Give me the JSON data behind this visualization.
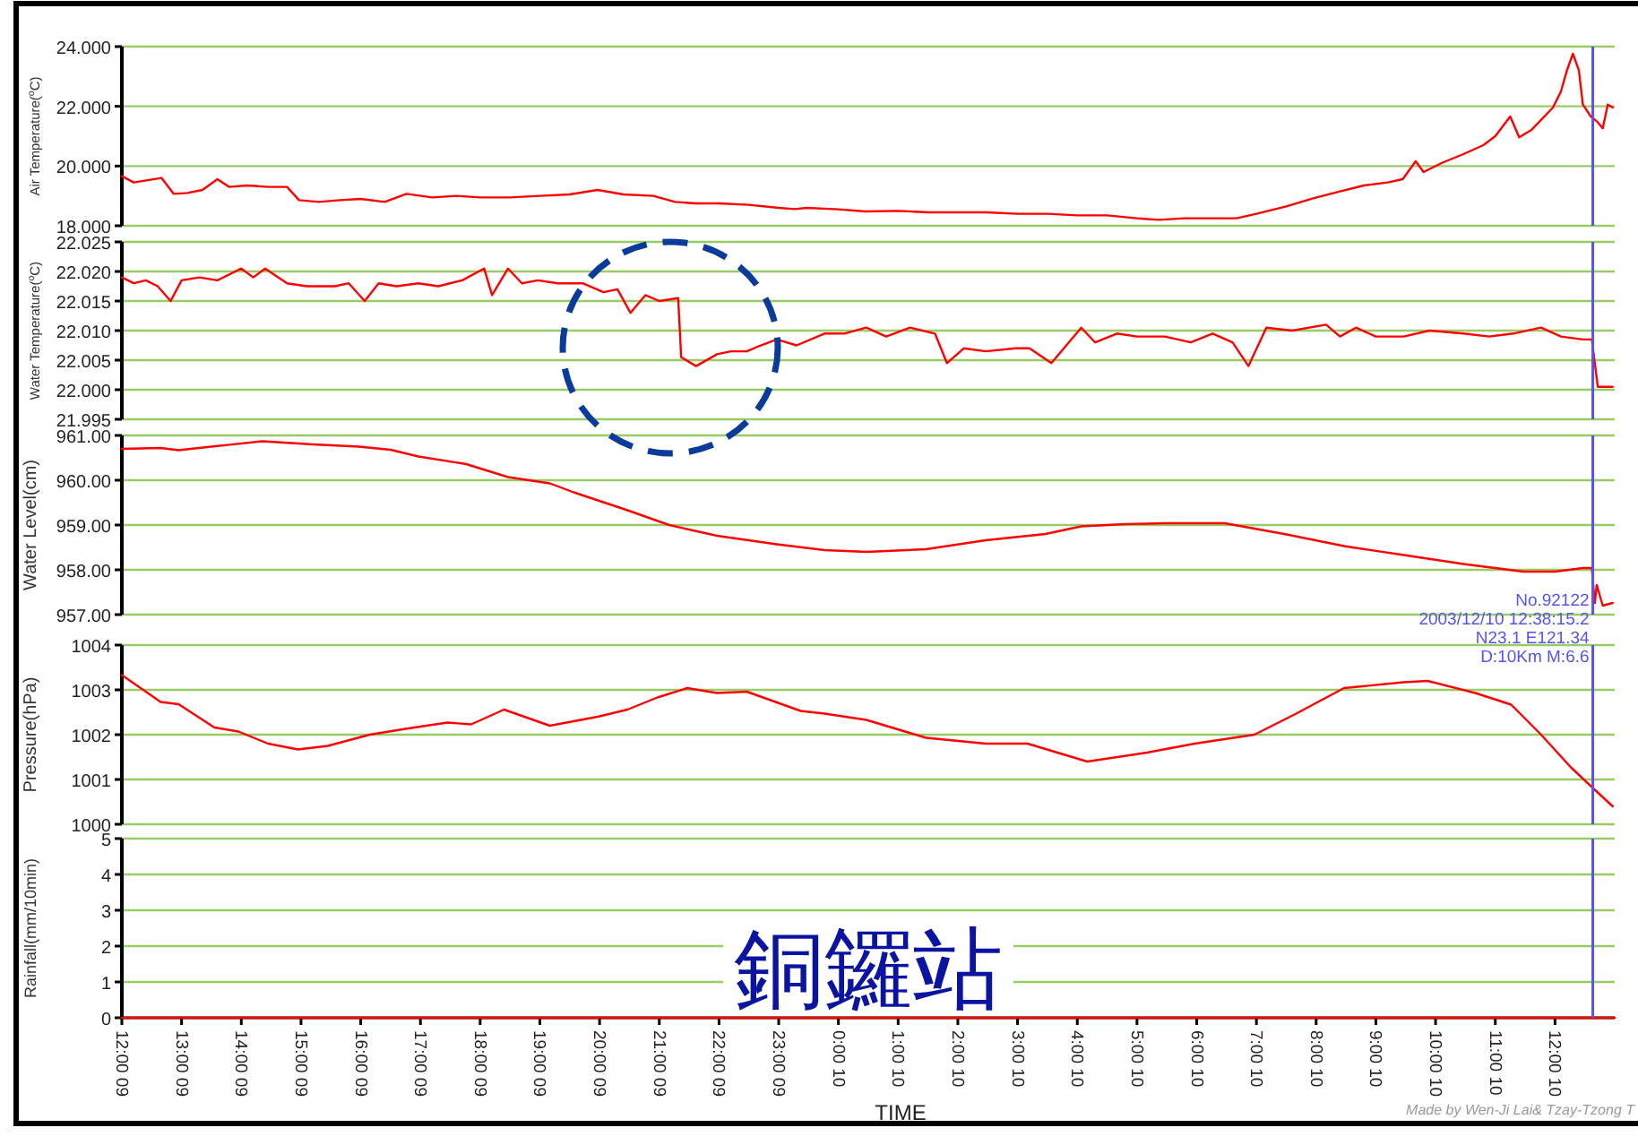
{
  "chart_data": [
    {
      "type": "line",
      "ylabel": "Air Temperature($^{o}$C)",
      "color": "#ff0000",
      "xlim": [
        "2003-12-09T12:00",
        "2003-12-10T13:00"
      ],
      "ylim": [
        18,
        24
      ],
      "yticks": [
        {
          "value": 18,
          "label": "18.000"
        },
        {
          "value": 20,
          "label": "20.000"
        },
        {
          "value": 22,
          "label": "22.000"
        },
        {
          "value": 24,
          "label": "24.000"
        }
      ],
      "grid": "y",
      "tick_labels": "y",
      "x": [
        "2003-12-09T12:00",
        "2003-12-09T12:12",
        "2003-12-09T12:30",
        "2003-12-09T12:40",
        "2003-12-09T12:52",
        "2003-12-09T13:06",
        "2003-12-09T13:21",
        "2003-12-09T13:36",
        "2003-12-09T13:48",
        "2003-12-09T14:06",
        "2003-12-09T14:27",
        "2003-12-09T14:46",
        "2003-12-09T14:58",
        "2003-12-09T15:18",
        "2003-12-09T15:36",
        "2003-12-09T16:00",
        "2003-12-09T16:24",
        "2003-12-09T16:46",
        "2003-12-09T17:12",
        "2003-12-09T17:36",
        "2003-12-09T18:00",
        "2003-12-09T18:30",
        "2003-12-09T19:00",
        "2003-12-09T19:30",
        "2003-12-09T19:58",
        "2003-12-09T20:24",
        "2003-12-09T20:54",
        "2003-12-09T21:16",
        "2003-12-09T21:36",
        "2003-12-09T22:00",
        "2003-12-09T22:30",
        "2003-12-09T23:00",
        "2003-12-09T23:16",
        "2003-12-09T23:28",
        "2003-12-10T00:00",
        "2003-12-10T00:27",
        "2003-12-10T01:00",
        "2003-12-10T01:30",
        "2003-12-10T02:00",
        "2003-12-10T02:28",
        "2003-12-10T03:00",
        "2003-12-10T03:30",
        "2003-12-10T04:00",
        "2003-12-10T04:30",
        "2003-12-10T05:00",
        "2003-12-10T05:22",
        "2003-12-10T05:48",
        "2003-12-10T06:12",
        "2003-12-10T06:40",
        "2003-12-10T07:00",
        "2003-12-10T07:30",
        "2003-12-10T07:57",
        "2003-12-10T08:24",
        "2003-12-10T08:48",
        "2003-12-10T09:12",
        "2003-12-10T09:27",
        "2003-12-10T09:40",
        "2003-12-10T09:48",
        "2003-12-10T10:06",
        "2003-12-10T10:28",
        "2003-12-10T10:48",
        "2003-12-10T11:00",
        "2003-12-10T11:15",
        "2003-12-10T11:24",
        "2003-12-10T11:36",
        "2003-12-10T11:58",
        "2003-12-10T12:06",
        "2003-12-10T12:12",
        "2003-12-10T12:18",
        "2003-12-10T12:24",
        "2003-12-10T12:28",
        "2003-12-10T12:36",
        "2003-12-10T12:42",
        "2003-12-10T12:48",
        "2003-12-10T12:53",
        "2003-12-10T12:58"
      ],
      "values": [
        19.66,
        19.45,
        19.55,
        19.6,
        19.07,
        19.1,
        19.2,
        19.56,
        19.3,
        19.35,
        19.3,
        19.3,
        18.86,
        18.8,
        18.85,
        18.9,
        18.8,
        19.07,
        18.95,
        19.0,
        18.95,
        18.95,
        19.0,
        19.05,
        19.2,
        19.05,
        19.0,
        18.8,
        18.75,
        18.75,
        18.7,
        18.6,
        18.56,
        18.6,
        18.55,
        18.48,
        18.5,
        18.45,
        18.45,
        18.45,
        18.4,
        18.4,
        18.35,
        18.35,
        18.25,
        18.2,
        18.25,
        18.25,
        18.25,
        18.4,
        18.65,
        18.92,
        19.15,
        19.35,
        19.45,
        19.56,
        20.16,
        19.8,
        20.1,
        20.4,
        20.7,
        21.0,
        21.66,
        20.96,
        21.2,
        21.96,
        22.5,
        23.2,
        23.76,
        23.2,
        22.06,
        21.66,
        21.5,
        21.26,
        22.06,
        21.96
      ],
      "ref_lines": [
        {
          "axis": "x",
          "value": "2003-12-10T12:38",
          "color": "#5555ee"
        }
      ]
    },
    {
      "type": "line",
      "ylabel": "Water Temperature($^{o}$C)",
      "color": "#ff0000",
      "xlim": [
        "2003-12-09T12:00",
        "2003-12-10T13:00"
      ],
      "ylim": [
        21.995,
        22.025
      ],
      "yticks": [
        {
          "value": 21.995,
          "label": "21.995"
        },
        {
          "value": 22.0,
          "label": "22.000"
        },
        {
          "value": 22.005,
          "label": "22.005"
        },
        {
          "value": 22.01,
          "label": "22.010"
        },
        {
          "value": 22.015,
          "label": "22.015"
        },
        {
          "value": 22.02,
          "label": "22.020"
        },
        {
          "value": 22.025,
          "label": "22.025"
        }
      ],
      "grid": "y",
      "tick_labels": "y",
      "x": [
        "2003-12-09T12:00",
        "2003-12-09T12:12",
        "2003-12-09T12:24",
        "2003-12-09T12:36",
        "2003-12-09T12:49",
        "2003-12-09T13:00",
        "2003-12-09T13:18",
        "2003-12-09T13:36",
        "2003-12-09T14:00",
        "2003-12-09T14:12",
        "2003-12-09T14:24",
        "2003-12-09T14:46",
        "2003-12-09T15:06",
        "2003-12-09T15:34",
        "2003-12-09T15:48",
        "2003-12-09T16:04",
        "2003-12-09T16:18",
        "2003-12-09T16:36",
        "2003-12-09T16:58",
        "2003-12-09T17:18",
        "2003-12-09T17:42",
        "2003-12-09T18:04",
        "2003-12-09T18:12",
        "2003-12-09T18:28",
        "2003-12-09T18:42",
        "2003-12-09T18:58",
        "2003-12-09T19:18",
        "2003-12-09T19:43",
        "2003-12-09T20:04",
        "2003-12-09T20:18",
        "2003-12-09T20:31",
        "2003-12-09T20:46",
        "2003-12-09T21:00",
        "2003-12-09T21:19",
        "2003-12-09T21:22",
        "2003-12-09T21:37",
        "2003-12-09T21:58",
        "2003-12-09T22:12",
        "2003-12-09T22:28",
        "2003-12-09T22:42",
        "2003-12-09T22:58",
        "2003-12-09T23:18",
        "2003-12-09T23:46",
        "2003-12-10T00:06",
        "2003-12-10T00:28",
        "2003-12-10T00:48",
        "2003-12-10T01:12",
        "2003-12-10T01:37",
        "2003-12-10T01:49",
        "2003-12-10T02:06",
        "2003-12-10T02:28",
        "2003-12-10T02:58",
        "2003-12-10T03:12",
        "2003-12-10T03:34",
        "2003-12-10T04:04",
        "2003-12-10T04:18",
        "2003-12-10T04:40",
        "2003-12-10T05:00",
        "2003-12-10T05:28",
        "2003-12-10T05:54",
        "2003-12-10T06:16",
        "2003-12-10T06:36",
        "2003-12-10T06:52",
        "2003-12-10T07:10",
        "2003-12-10T07:36",
        "2003-12-10T08:10",
        "2003-12-10T08:24",
        "2003-12-10T08:40",
        "2003-12-10T09:00",
        "2003-12-10T09:28",
        "2003-12-10T09:54",
        "2003-12-10T10:28",
        "2003-12-10T10:54",
        "2003-12-10T11:18",
        "2003-12-10T11:46",
        "2003-12-10T12:06",
        "2003-12-10T12:28",
        "2003-12-10T12:37",
        "2003-12-10T12:43",
        "2003-12-10T12:51",
        "2003-12-10T12:58"
      ],
      "values": [
        22.019,
        22.018,
        22.0185,
        22.0175,
        22.015,
        22.0185,
        22.019,
        22.0185,
        22.0205,
        22.019,
        22.0205,
        22.018,
        22.0175,
        22.0175,
        22.018,
        22.015,
        22.018,
        22.0175,
        22.018,
        22.0175,
        22.0185,
        22.0205,
        22.016,
        22.0205,
        22.018,
        22.0185,
        22.018,
        22.018,
        22.0165,
        22.017,
        22.013,
        22.016,
        22.015,
        22.0155,
        22.0055,
        22.004,
        22.006,
        22.0065,
        22.0065,
        22.0075,
        22.0085,
        22.0075,
        22.0095,
        22.0095,
        22.0105,
        22.009,
        22.0105,
        22.0095,
        22.0045,
        22.007,
        22.0065,
        22.007,
        22.007,
        22.0045,
        22.0105,
        22.008,
        22.0095,
        22.009,
        22.009,
        22.008,
        22.0095,
        22.008,
        22.004,
        22.0105,
        22.01,
        22.011,
        22.009,
        22.0105,
        22.009,
        22.009,
        22.01,
        22.0095,
        22.009,
        22.0095,
        22.0105,
        22.009,
        22.0085,
        22.0085,
        22.0005,
        22.0005,
        22.0005
      ],
      "ref_lines": [
        {
          "axis": "x",
          "value": "2003-12-10T12:38",
          "color": "#5555ee"
        }
      ]
    },
    {
      "type": "line",
      "ylabel": "Water Level(cm)",
      "color": "#ff0000",
      "xlim": [
        "2003-12-09T12:00",
        "2003-12-10T13:00"
      ],
      "ylim": [
        957,
        961
      ],
      "yticks": [
        {
          "value": 957,
          "label": "957.00"
        },
        {
          "value": 958,
          "label": "958.00"
        },
        {
          "value": 959,
          "label": "959.00"
        },
        {
          "value": 960,
          "label": "960.00"
        },
        {
          "value": 961,
          "label": "961.00"
        }
      ],
      "grid": "y",
      "tick_labels": "y",
      "x": [
        "2003-12-09T12:00",
        "2003-12-09T12:39",
        "2003-12-09T12:57",
        "2003-12-09T13:30",
        "2003-12-09T14:21",
        "2003-12-09T15:12",
        "2003-12-09T15:58",
        "2003-12-09T16:30",
        "2003-12-09T16:58",
        "2003-12-09T17:46",
        "2003-12-09T18:28",
        "2003-12-09T19:10",
        "2003-12-09T19:34",
        "2003-12-09T20:28",
        "2003-12-09T21:10",
        "2003-12-09T21:58",
        "2003-12-09T22:58",
        "2003-12-09T23:46",
        "2003-12-10T00:28",
        "2003-12-10T01:28",
        "2003-12-10T02:28",
        "2003-12-10T03:28",
        "2003-12-10T04:04",
        "2003-12-10T04:48",
        "2003-12-10T05:28",
        "2003-12-10T06:28",
        "2003-12-10T07:28",
        "2003-12-10T08:28",
        "2003-12-10T09:28",
        "2003-12-10T10:28",
        "2003-12-10T11:28",
        "2003-12-10T12:00",
        "2003-12-10T12:28",
        "2003-12-10T12:37",
        "2003-12-10T12:40",
        "2003-12-10T12:42",
        "2003-12-10T12:48",
        "2003-12-10T12:58"
      ],
      "values": [
        960.7,
        960.72,
        960.67,
        960.75,
        960.87,
        960.8,
        960.75,
        960.68,
        960.53,
        960.36,
        960.07,
        959.93,
        959.73,
        959.33,
        959.0,
        958.76,
        958.57,
        958.44,
        958.4,
        958.46,
        958.66,
        958.8,
        958.97,
        959.02,
        959.04,
        959.04,
        958.8,
        958.53,
        958.33,
        958.13,
        957.96,
        957.96,
        958.04,
        958.04,
        957.26,
        957.66,
        957.2,
        957.26
      ],
      "ref_lines": [
        {
          "axis": "x",
          "value": "2003-12-10T12:38",
          "color": "#5555ee",
          "label": "No.92122\n2003/12/10 12:38:15.2\nN23.1 E121.34\nD:10Km M:6.6"
        }
      ]
    },
    {
      "type": "line",
      "ylabel": "Pressure(hPa)",
      "color": "#ff0000",
      "xlim": [
        "2003-12-09T12:00",
        "2003-12-10T13:00"
      ],
      "ylim": [
        1000,
        1004
      ],
      "yticks": [
        1000,
        1001,
        1002,
        1003,
        1004
      ],
      "grid": "y",
      "tick_labels": "y",
      "x": [
        "2003-12-09T12:00",
        "2003-12-09T12:39",
        "2003-12-09T12:57",
        "2003-12-09T13:33",
        "2003-12-09T13:57",
        "2003-12-09T14:27",
        "2003-12-09T14:57",
        "2003-12-09T15:27",
        "2003-12-09T16:09",
        "2003-12-09T16:45",
        "2003-12-09T17:27",
        "2003-12-09T17:51",
        "2003-12-09T18:24",
        "2003-12-09T19:10",
        "2003-12-09T19:58",
        "2003-12-09T20:28",
        "2003-12-09T20:58",
        "2003-12-09T21:28",
        "2003-12-09T21:58",
        "2003-12-09T22:28",
        "2003-12-09T23:22",
        "2003-12-09T23:46",
        "2003-12-10T00:28",
        "2003-12-10T01:28",
        "2003-12-10T02:28",
        "2003-12-10T03:10",
        "2003-12-10T04:10",
        "2003-12-10T05:10",
        "2003-12-10T05:58",
        "2003-12-10T06:58",
        "2003-12-10T07:40",
        "2003-12-10T08:28",
        "2003-12-10T09:28",
        "2003-12-10T09:52",
        "2003-12-10T10:40",
        "2003-12-10T11:16",
        "2003-12-10T11:46",
        "2003-12-10T12:16",
        "2003-12-10T12:40",
        "2003-12-10T12:58"
      ],
      "values": [
        1003.33,
        1002.73,
        1002.68,
        1002.16,
        1002.07,
        1001.8,
        1001.67,
        1001.75,
        1002.0,
        1002.13,
        1002.27,
        1002.23,
        1002.56,
        1002.2,
        1002.4,
        1002.56,
        1002.83,
        1003.04,
        1002.93,
        1002.96,
        1002.53,
        1002.47,
        1002.33,
        1001.93,
        1001.8,
        1001.8,
        1001.4,
        1001.6,
        1001.8,
        1002.0,
        1002.47,
        1003.04,
        1003.17,
        1003.2,
        1002.93,
        1002.67,
        1002.0,
        1001.27,
        1000.77,
        1000.4
      ],
      "ref_lines": [
        {
          "axis": "x",
          "value": "2003-12-10T12:38",
          "color": "#5555ee"
        }
      ]
    },
    {
      "type": "line",
      "title": "銅鑼站",
      "ylabel": "Rainfall(mm/10min)",
      "xlabel": "TIME",
      "color": "#ff0000",
      "xlim": [
        "2003-12-09T12:00",
        "2003-12-10T13:00"
      ],
      "ylim": [
        0,
        5
      ],
      "yticks": [
        0,
        1,
        2,
        3,
        4,
        5
      ],
      "grid": "y",
      "xticks": [
        {
          "value": "2003-12-09T12:00",
          "label": "12:00 09"
        },
        {
          "value": "2003-12-09T13:00",
          "label": "13:00 09"
        },
        {
          "value": "2003-12-09T14:00",
          "label": "14:00 09"
        },
        {
          "value": "2003-12-09T15:00",
          "label": "15:00 09"
        },
        {
          "value": "2003-12-09T16:00",
          "label": "16:00 09"
        },
        {
          "value": "2003-12-09T17:00",
          "label": "17:00 09"
        },
        {
          "value": "2003-12-09T18:00",
          "label": "18:00 09"
        },
        {
          "value": "2003-12-09T19:00",
          "label": "19:00 09"
        },
        {
          "value": "2003-12-09T20:00",
          "label": "20:00 09"
        },
        {
          "value": "2003-12-09T21:00",
          "label": "21:00 09"
        },
        {
          "value": "2003-12-09T22:00",
          "label": "22:00 09"
        },
        {
          "value": "2003-12-09T23:00",
          "label": "23:00 09"
        },
        {
          "value": "2003-12-10T00:00",
          "label": "0:00 10"
        },
        {
          "value": "2003-12-10T01:00",
          "label": "1:00 10"
        },
        {
          "value": "2003-12-10T02:00",
          "label": "2:00 10"
        },
        {
          "value": "2003-12-10T03:00",
          "label": "3:00 10"
        },
        {
          "value": "2003-12-10T04:00",
          "label": "4:00 10"
        },
        {
          "value": "2003-12-10T05:00",
          "label": "5:00 10"
        },
        {
          "value": "2003-12-10T06:00",
          "label": "6:00 10"
        },
        {
          "value": "2003-12-10T07:00",
          "label": "7:00 10"
        },
        {
          "value": "2003-12-10T08:00",
          "label": "8:00 10"
        },
        {
          "value": "2003-12-10T09:00",
          "label": "9:00 10"
        },
        {
          "value": "2003-12-10T10:00",
          "label": "10:00 10"
        },
        {
          "value": "2003-12-10T11:00",
          "label": "11:00 10"
        },
        {
          "value": "2003-12-10T12:00",
          "label": "12:00 10"
        }
      ],
      "x": [
        "2003-12-09T12:00",
        "2003-12-10T13:00"
      ],
      "values": [
        0,
        0
      ],
      "ref_lines": [
        {
          "axis": "x",
          "value": "2003-12-10T12:38",
          "color": "#5555ee"
        }
      ],
      "annotations": [
        "Made by Wen-Ji Lai& Tzay-Tzong T"
      ]
    }
  ]
}
